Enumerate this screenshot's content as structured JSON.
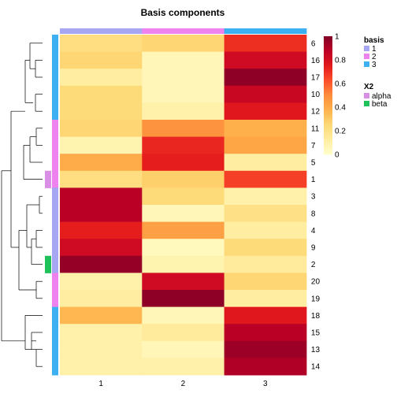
{
  "chart_data": {
    "type": "heatmap",
    "title": "Basis components",
    "x_labels": [
      "1",
      "2",
      "3"
    ],
    "row_labels": [
      "6",
      "16",
      "17",
      "10",
      "12",
      "11",
      "7",
      "5",
      "1",
      "3",
      "8",
      "4",
      "9",
      "2",
      "20",
      "19",
      "18",
      "15",
      "13",
      "14"
    ],
    "values": [
      [
        0.22,
        0.26,
        0.7
      ],
      [
        0.26,
        0.06,
        0.82
      ],
      [
        0.12,
        0.06,
        0.97
      ],
      [
        0.24,
        0.06,
        0.84
      ],
      [
        0.24,
        0.1,
        0.76
      ],
      [
        0.26,
        0.48,
        0.38
      ],
      [
        0.08,
        0.72,
        0.42
      ],
      [
        0.4,
        0.74,
        0.12
      ],
      [
        0.22,
        0.28,
        0.66
      ],
      [
        0.88,
        0.24,
        0.1
      ],
      [
        0.88,
        0.06,
        0.2
      ],
      [
        0.74,
        0.44,
        0.12
      ],
      [
        0.82,
        0.04,
        0.24
      ],
      [
        0.96,
        0.08,
        0.14
      ],
      [
        0.1,
        0.82,
        0.26
      ],
      [
        0.12,
        0.97,
        0.12
      ],
      [
        0.36,
        0.06,
        0.76
      ],
      [
        0.1,
        0.14,
        0.88
      ],
      [
        0.1,
        0.06,
        0.94
      ],
      [
        0.1,
        0.1,
        0.9
      ]
    ],
    "column_annotation": {
      "name": "basis",
      "values": [
        "1",
        "2",
        "3"
      ]
    },
    "row_annotation": {
      "name": "X2",
      "basis_values": [
        "3",
        "3",
        "3",
        "3",
        "3",
        "1",
        "1",
        "1",
        "3",
        "1",
        "1",
        "1",
        "1",
        "1",
        "1",
        "1",
        "3",
        "3",
        "3",
        "3"
      ],
      "x2_values": [
        "",
        "",
        "",
        "",
        "",
        "",
        "",
        "",
        "alpha",
        "",
        "",
        "",
        "",
        "beta",
        "",
        "",
        "",
        "",
        "",
        ""
      ]
    },
    "legend": {
      "basis": {
        "title": "basis",
        "items": [
          {
            "label": "1",
            "color": "#A6A6F2"
          },
          {
            "label": "2",
            "color": "#EE82EE"
          },
          {
            "label": "3",
            "color": "#3DB0F2"
          }
        ]
      },
      "x2": {
        "title": "X2",
        "items": [
          {
            "label": "alpha",
            "color": "#D98FE6"
          },
          {
            "label": "beta",
            "color": "#1FC15A"
          }
        ]
      }
    },
    "colorbar": {
      "min": 0,
      "max": 1,
      "ticks": [
        "0",
        "0.2",
        "0.4",
        "0.6",
        "0.8",
        "1"
      ]
    },
    "color_scale": [
      "#FFFFCC",
      "#FFEDA0",
      "#FED976",
      "#FEB24C",
      "#FD8D3C",
      "#FC4E2A",
      "#E31A1C",
      "#BD0026",
      "#800026"
    ],
    "row_colors": {
      "1": "#A6A6F2",
      "3": "#3DB0F2",
      "row_strip_1_color": "#EE82EE"
    }
  }
}
